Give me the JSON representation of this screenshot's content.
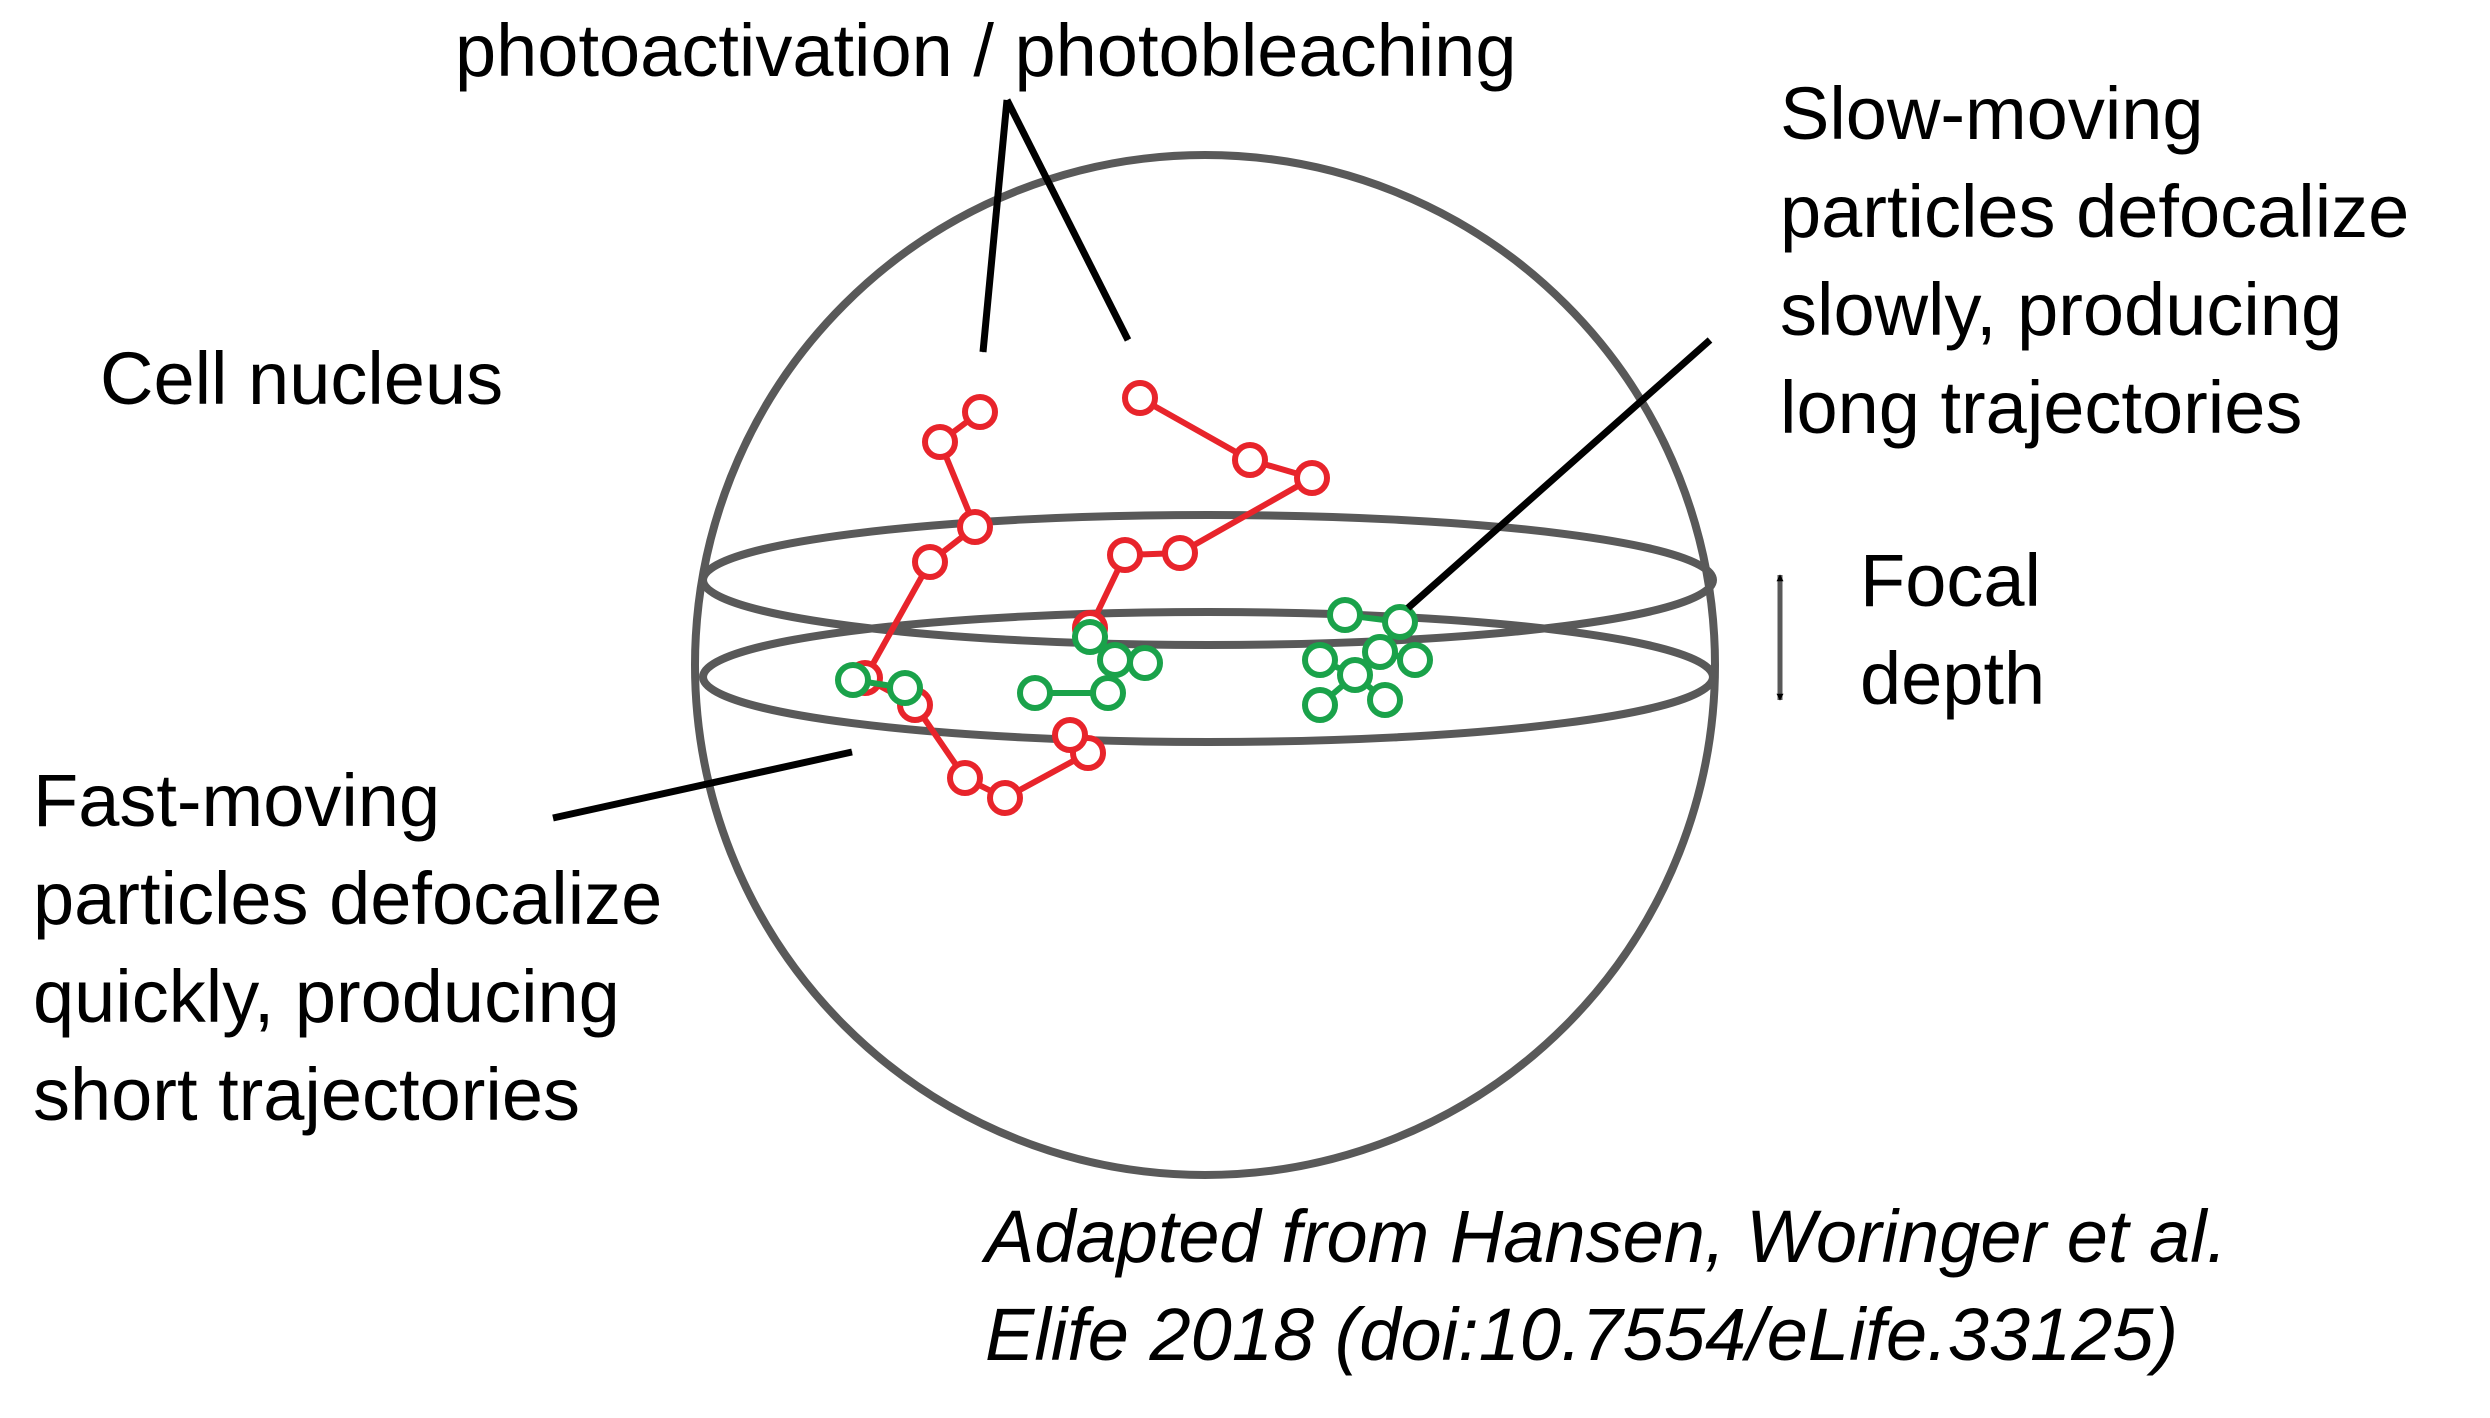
{
  "labels": {
    "top": "photoactivation / photobleaching",
    "nucleus": "Cell nucleus",
    "slow": [
      "Slow-moving",
      "particles defocalize",
      "slowly, producing",
      "long trajectories"
    ],
    "focal": [
      "Focal",
      "depth"
    ],
    "fast": [
      "Fast-moving",
      "particles defocalize",
      "quickly, producing",
      "short trajectories"
    ],
    "citation": [
      "Adapted from Hansen, Woringer et al.",
      "Elife 2018 (doi:10.7554/eLife.33125)"
    ]
  },
  "colors": {
    "outline": "#595959",
    "fast_trajectory": "#e8242b",
    "slow_trajectory": "#1aa24a",
    "arrow": "#000000",
    "text": "#000000"
  }
}
